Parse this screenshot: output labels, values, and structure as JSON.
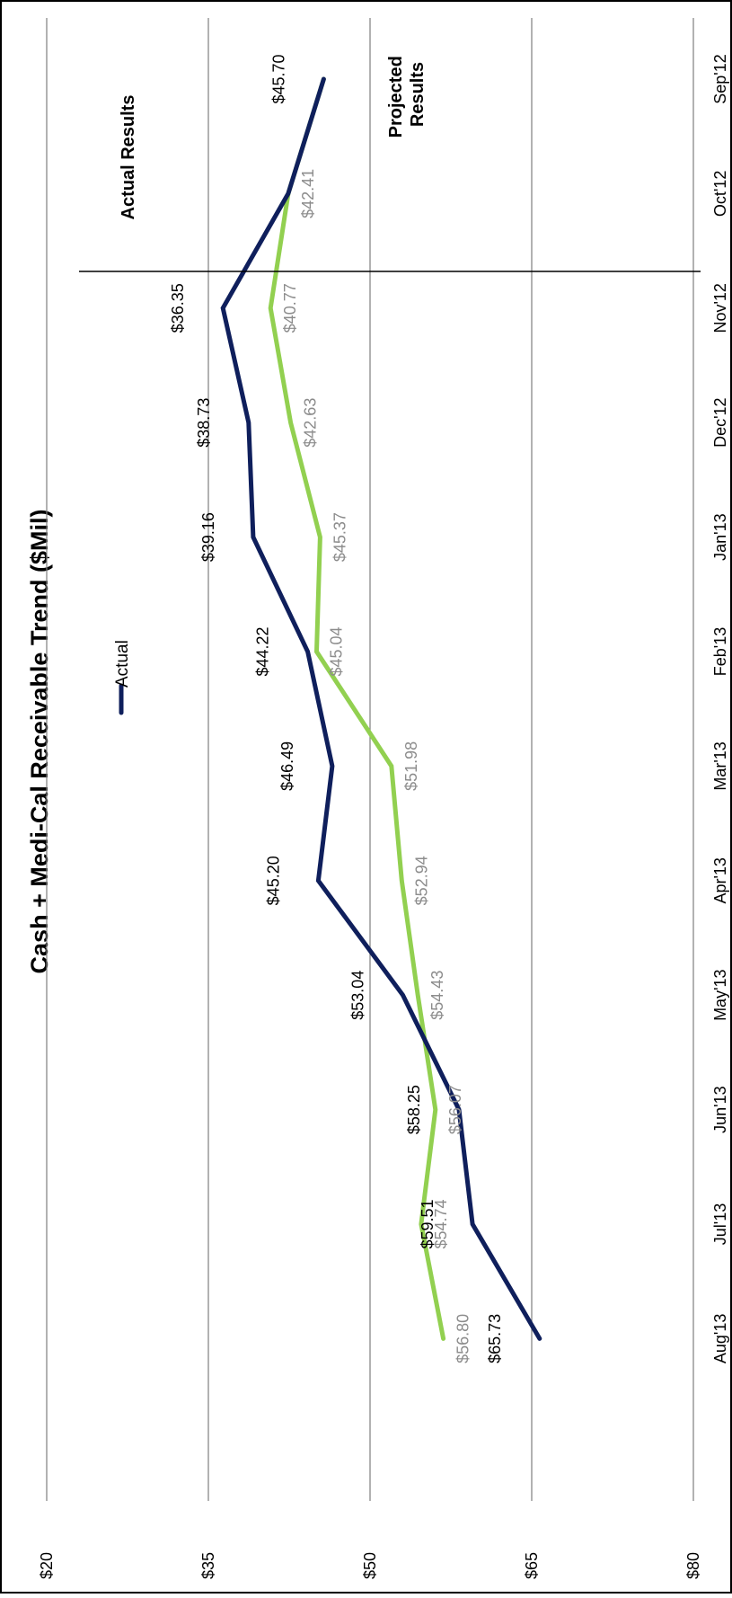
{
  "chart_data": {
    "type": "line",
    "title": "Cash + Medi-Cal Receivable Trend ($Mil)",
    "categories": [
      "Sep'12",
      "Oct'12",
      "Nov'12",
      "Dec'12",
      "Jan'13",
      "Feb'13",
      "Mar'13",
      "Apr'13",
      "May'13",
      "Jun'13",
      "Jul'13",
      "Aug'13"
    ],
    "y_ticks": [
      "$20",
      "$35",
      "$50",
      "$65",
      "$80"
    ],
    "ylim": [
      20,
      80
    ],
    "grid": true,
    "legend": {
      "label": "Actual",
      "position": "top"
    },
    "series": [
      {
        "name": "Actual",
        "color": "#0f1f5c",
        "values": [
          45.7,
          42.41,
          36.35,
          38.73,
          39.16,
          44.22,
          46.49,
          45.2,
          53.04,
          58.25,
          59.51,
          65.73
        ],
        "labels": [
          "$45.70",
          "",
          "$36.35",
          "$38.73",
          "$39.16",
          "$44.22",
          "$46.49",
          "$45.20",
          "$53.04",
          "$58.25",
          "$59.51",
          "$65.73"
        ]
      },
      {
        "color": "#92d050",
        "values": [
          45.7,
          42.41,
          40.77,
          42.63,
          45.37,
          45.04,
          51.98,
          52.94,
          54.43,
          56.07,
          54.74,
          56.8
        ],
        "labels": [
          "",
          "$42.41",
          "$40.77",
          "$42.63",
          "$45.37",
          "$45.04",
          "$51.98",
          "$52.94",
          "$54.43",
          "$56.07",
          "$54.74",
          "$56.80"
        ]
      }
    ],
    "annotations": {
      "actual_results": "Actual Results",
      "projected_results": "Projected Results",
      "divider_between": [
        "Jun'13",
        "Jul'13"
      ]
    }
  }
}
